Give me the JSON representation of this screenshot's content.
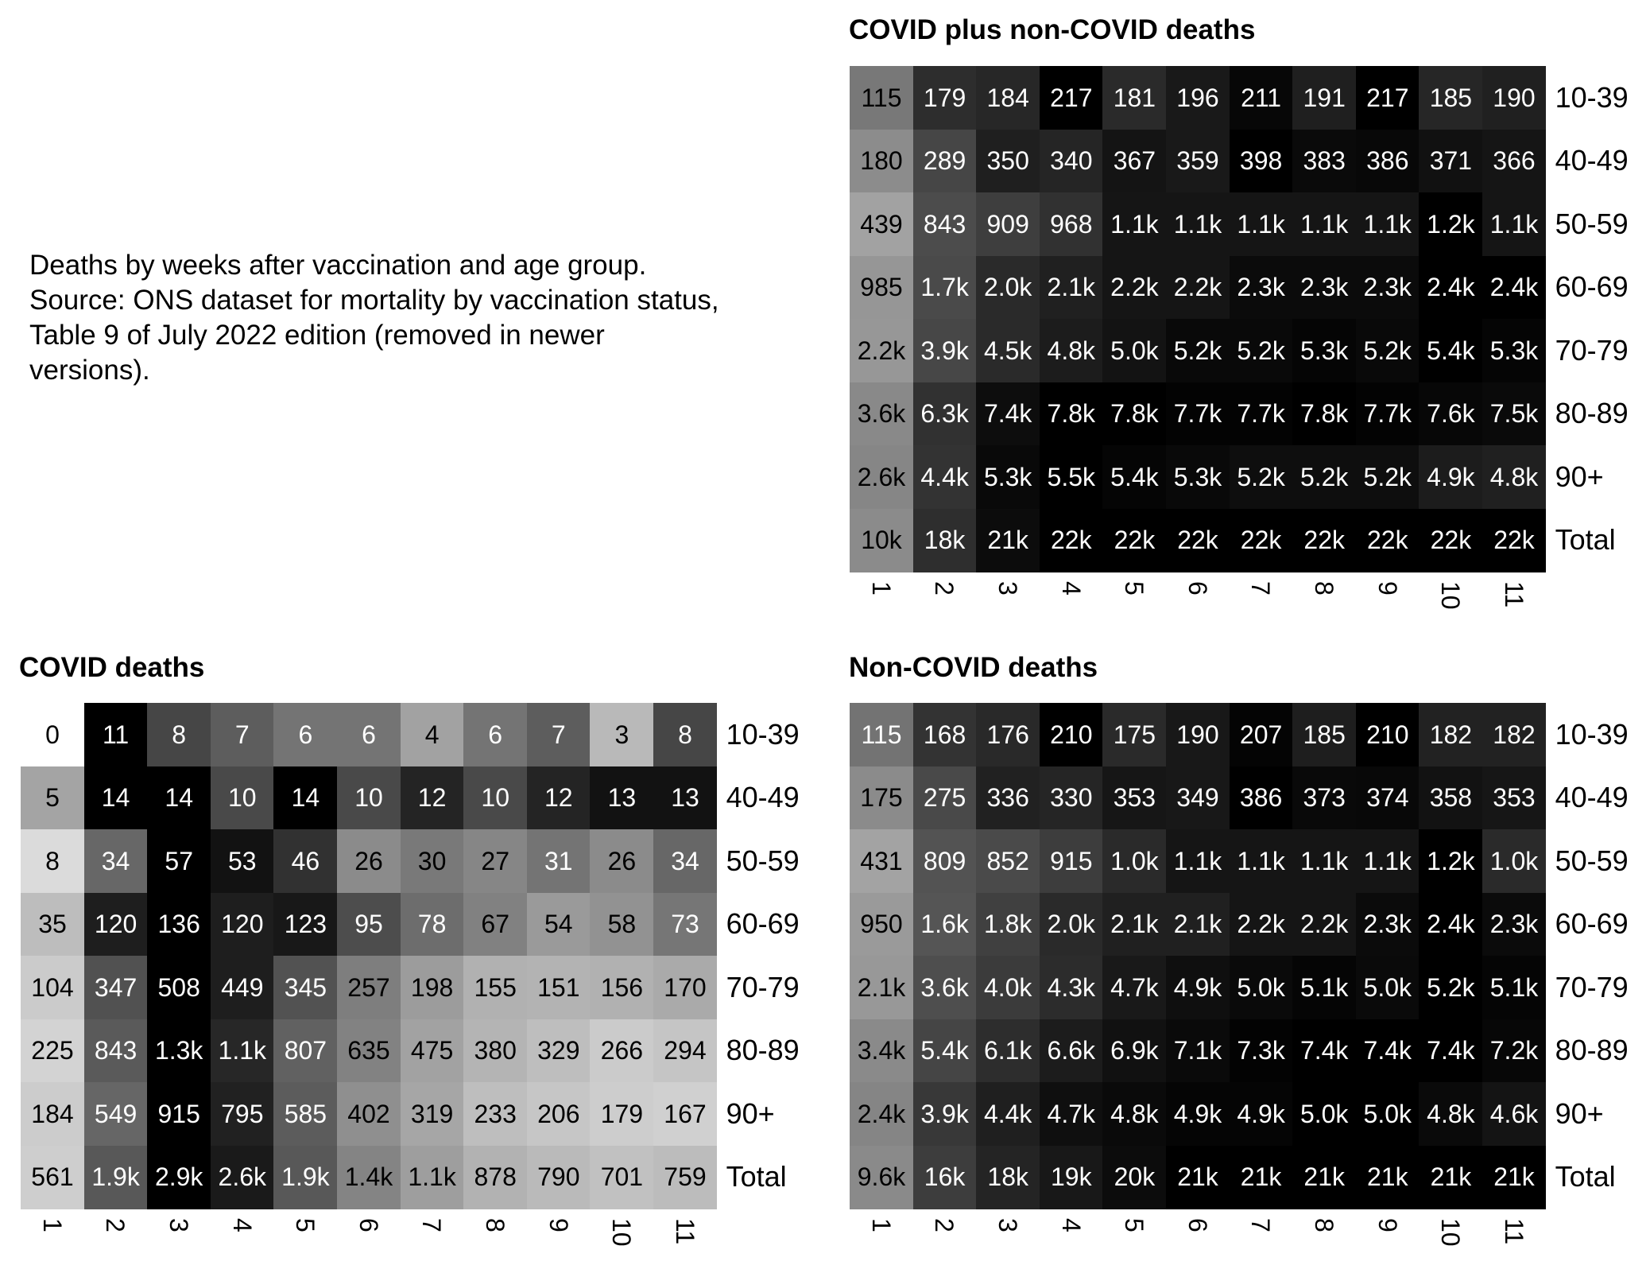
{
  "description": [
    "Deaths by weeks after vaccination and age group.",
    "Source: ONS dataset for mortality by vaccination status,",
    "Table 9 of July 2022 edition (removed in newer",
    "versions)."
  ],
  "chart_data": [
    {
      "type": "heatmap",
      "title": "COVID plus non-COVID deaths",
      "x": [
        "1",
        "2",
        "3",
        "4",
        "5",
        "6",
        "7",
        "8",
        "9",
        "10",
        "11"
      ],
      "y": [
        "10-39",
        "40-49",
        "50-59",
        "60-69",
        "70-79",
        "80-89",
        "90+",
        "Total"
      ],
      "colorscale": "grayscale, darker = higher within row",
      "values": [
        [
          "115",
          "179",
          "184",
          "217",
          "181",
          "196",
          "211",
          "191",
          "217",
          "185",
          "190"
        ],
        [
          "180",
          "289",
          "350",
          "340",
          "367",
          "359",
          "398",
          "383",
          "386",
          "371",
          "366"
        ],
        [
          "439",
          "843",
          "909",
          "968",
          "1.1k",
          "1.1k",
          "1.1k",
          "1.1k",
          "1.1k",
          "1.2k",
          "1.1k"
        ],
        [
          "985",
          "1.7k",
          "2.0k",
          "2.1k",
          "2.2k",
          "2.2k",
          "2.3k",
          "2.3k",
          "2.3k",
          "2.4k",
          "2.4k"
        ],
        [
          "2.2k",
          "3.9k",
          "4.5k",
          "4.8k",
          "5.0k",
          "5.2k",
          "5.2k",
          "5.3k",
          "5.2k",
          "5.4k",
          "5.3k"
        ],
        [
          "3.6k",
          "6.3k",
          "7.4k",
          "7.8k",
          "7.8k",
          "7.7k",
          "7.7k",
          "7.8k",
          "7.7k",
          "7.6k",
          "7.5k"
        ],
        [
          "2.6k",
          "4.4k",
          "5.3k",
          "5.5k",
          "5.4k",
          "5.3k",
          "5.2k",
          "5.2k",
          "5.2k",
          "4.9k",
          "4.8k"
        ],
        [
          "10k",
          "18k",
          "21k",
          "22k",
          "22k",
          "22k",
          "22k",
          "22k",
          "22k",
          "22k",
          "22k"
        ]
      ]
    },
    {
      "type": "heatmap",
      "title": "COVID deaths",
      "x": [
        "1",
        "2",
        "3",
        "4",
        "5",
        "6",
        "7",
        "8",
        "9",
        "10",
        "11"
      ],
      "y": [
        "10-39",
        "40-49",
        "50-59",
        "60-69",
        "70-79",
        "80-89",
        "90+",
        "Total"
      ],
      "colorscale": "grayscale, darker = higher within row",
      "values": [
        [
          "0",
          "11",
          "8",
          "7",
          "6",
          "6",
          "4",
          "6",
          "7",
          "3",
          "8"
        ],
        [
          "5",
          "14",
          "14",
          "10",
          "14",
          "10",
          "12",
          "10",
          "12",
          "13",
          "13"
        ],
        [
          "8",
          "34",
          "57",
          "53",
          "46",
          "26",
          "30",
          "27",
          "31",
          "26",
          "34"
        ],
        [
          "35",
          "120",
          "136",
          "120",
          "123",
          "95",
          "78",
          "67",
          "54",
          "58",
          "73"
        ],
        [
          "104",
          "347",
          "508",
          "449",
          "345",
          "257",
          "198",
          "155",
          "151",
          "156",
          "170"
        ],
        [
          "225",
          "843",
          "1.3k",
          "1.1k",
          "807",
          "635",
          "475",
          "380",
          "329",
          "266",
          "294"
        ],
        [
          "184",
          "549",
          "915",
          "795",
          "585",
          "402",
          "319",
          "233",
          "206",
          "179",
          "167"
        ],
        [
          "561",
          "1.9k",
          "2.9k",
          "2.6k",
          "1.9k",
          "1.4k",
          "1.1k",
          "878",
          "790",
          "701",
          "759"
        ]
      ]
    },
    {
      "type": "heatmap",
      "title": "Non-COVID deaths",
      "x": [
        "1",
        "2",
        "3",
        "4",
        "5",
        "6",
        "7",
        "8",
        "9",
        "10",
        "11"
      ],
      "y": [
        "10-39",
        "40-49",
        "50-59",
        "60-69",
        "70-79",
        "80-89",
        "90+",
        "Total"
      ],
      "colorscale": "grayscale, darker = higher within row",
      "values": [
        [
          "115",
          "168",
          "176",
          "210",
          "175",
          "190",
          "207",
          "185",
          "210",
          "182",
          "182"
        ],
        [
          "175",
          "275",
          "336",
          "330",
          "353",
          "349",
          "386",
          "373",
          "374",
          "358",
          "353"
        ],
        [
          "431",
          "809",
          "852",
          "915",
          "1.0k",
          "1.1k",
          "1.1k",
          "1.1k",
          "1.1k",
          "1.2k",
          "1.0k"
        ],
        [
          "950",
          "1.6k",
          "1.8k",
          "2.0k",
          "2.1k",
          "2.1k",
          "2.2k",
          "2.2k",
          "2.3k",
          "2.4k",
          "2.3k"
        ],
        [
          "2.1k",
          "3.6k",
          "4.0k",
          "4.3k",
          "4.7k",
          "4.9k",
          "5.0k",
          "5.1k",
          "5.0k",
          "5.2k",
          "5.1k"
        ],
        [
          "3.4k",
          "5.4k",
          "6.1k",
          "6.6k",
          "6.9k",
          "7.1k",
          "7.3k",
          "7.4k",
          "7.4k",
          "7.4k",
          "7.2k"
        ],
        [
          "2.4k",
          "3.9k",
          "4.4k",
          "4.7k",
          "4.8k",
          "4.9k",
          "4.9k",
          "5.0k",
          "5.0k",
          "4.8k",
          "4.6k"
        ],
        [
          "9.6k",
          "16k",
          "18k",
          "19k",
          "20k",
          "21k",
          "21k",
          "21k",
          "21k",
          "21k",
          "21k"
        ]
      ]
    }
  ]
}
